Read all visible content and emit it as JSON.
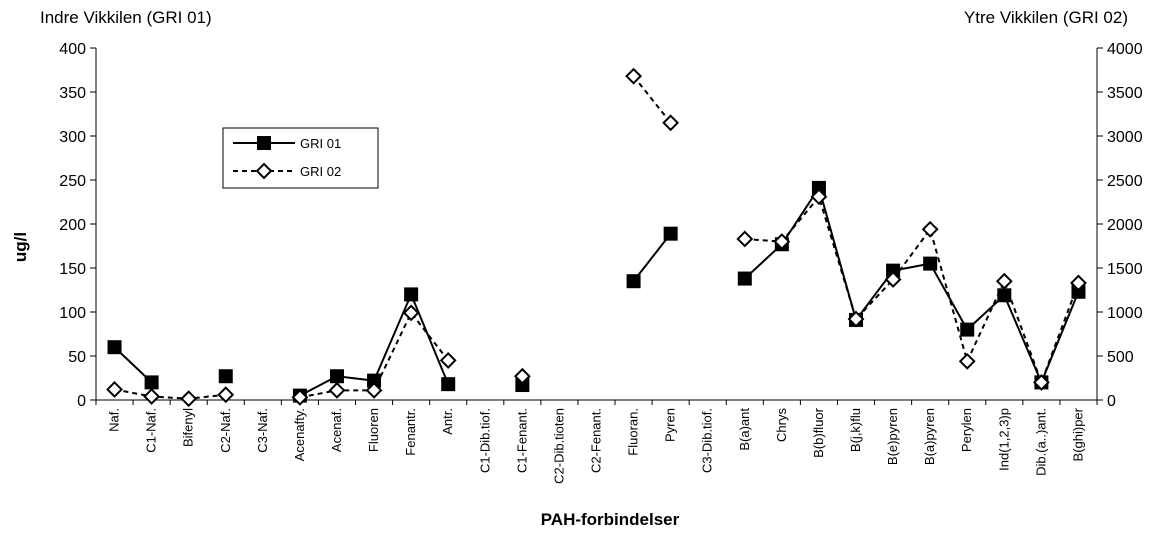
{
  "chart_data": {
    "type": "line",
    "left_axis_title": "Indre Vikkilen (GRI 01)",
    "right_axis_title": "Ytre Vikkilen (GRI 02)",
    "xlabel": "PAH-forbindelser",
    "ylabel": "ug/l",
    "ylim_left": [
      0,
      400
    ],
    "yticks_left": [
      "0",
      "50",
      "100",
      "150",
      "200",
      "250",
      "300",
      "350",
      "400"
    ],
    "ylim_right": [
      0,
      4000
    ],
    "yticks_right": [
      "0",
      "500",
      "1000",
      "1500",
      "2000",
      "2500",
      "3000",
      "3500",
      "4000"
    ],
    "grid": false,
    "legend_position": "top-left",
    "categories": [
      "Naf.",
      "C1-Naf.",
      "Bifenyl",
      "C2-Naf.",
      "C3-Naf.",
      "Acenafty.",
      "Acenaf.",
      "Fluoren",
      "Fenantr.",
      "Antr.",
      "C1-Dib.tiof.",
      "C1-Fenant.",
      "C2-Dib.tioten",
      "C2-Fenant.",
      "Fluoran.",
      "Pyren",
      "C3-Dib.tiof.",
      "B(a)ant",
      "Chrys",
      "B(b)fluor",
      "B(j,k)flu",
      "B(e)pyren",
      "B(a)pyren",
      "Perylen",
      "Ind(1,2,3)p",
      "Dib.(a..)ant.",
      "B(ghi)per"
    ],
    "series": [
      {
        "name": "GRI 01",
        "axis": "left",
        "style": "solid",
        "marker": "filled-square",
        "color": "#000000",
        "values": [
          60,
          20,
          null,
          27,
          null,
          5,
          27,
          22,
          120,
          18,
          null,
          17,
          null,
          null,
          135,
          189,
          null,
          138,
          177,
          241,
          91,
          147,
          155,
          80,
          119,
          20,
          123
        ]
      },
      {
        "name": "GRI 02",
        "axis": "right",
        "style": "dashed",
        "marker": "open-diamond",
        "color": "#000000",
        "values": [
          120,
          40,
          15,
          60,
          null,
          30,
          110,
          110,
          990,
          450,
          null,
          270,
          null,
          null,
          3680,
          3150,
          null,
          1830,
          1800,
          2310,
          920,
          1370,
          1940,
          440,
          1350,
          200,
          1330
        ]
      }
    ]
  }
}
